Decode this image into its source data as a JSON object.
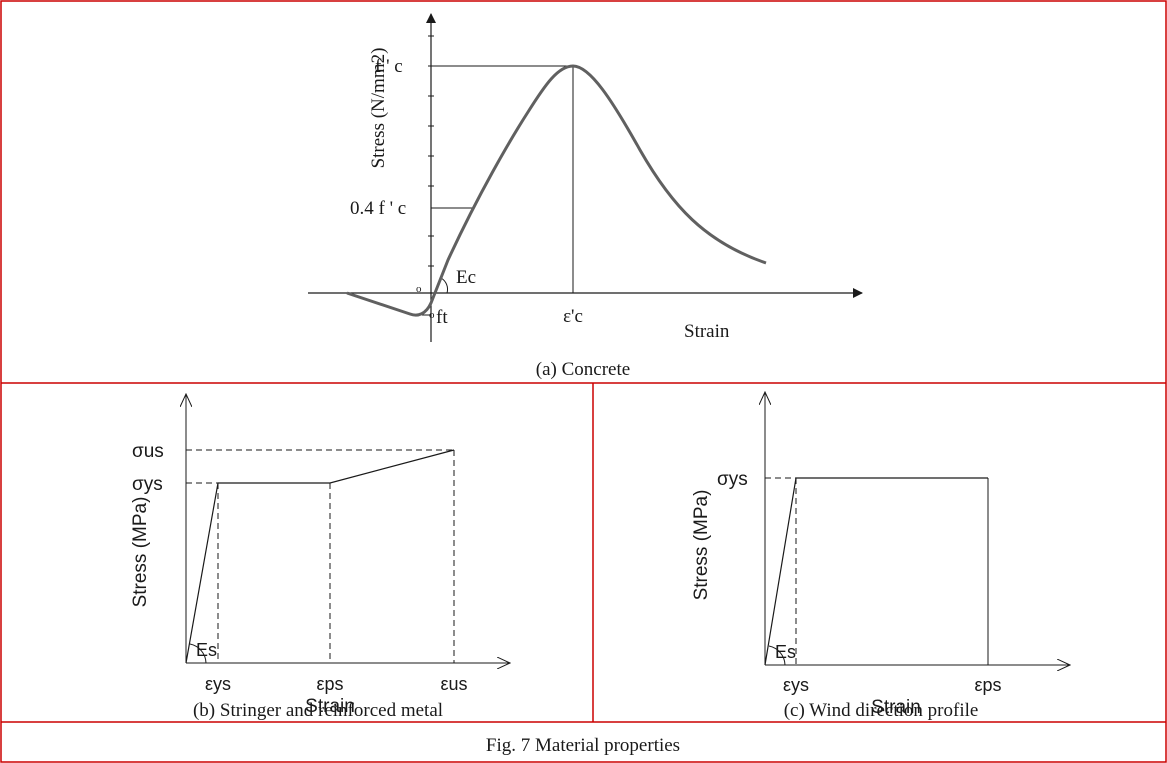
{
  "colors": {
    "border": "#cc0000",
    "curve": "#606060",
    "line": "#1a1a1a"
  },
  "panels": {
    "concrete": {
      "caption": "(a) Concrete",
      "ylabel": "Stress (N/mm2)",
      "xlabel": "Strain",
      "fc_label": "f ' c",
      "fc04_label": "0.4 f ' c",
      "ec_label": "Ec",
      "ft_label": "ft",
      "zero_label_left": "o",
      "zero_label_right": "o",
      "eps_c_label": "ε'c"
    },
    "stringer": {
      "caption": "(b) Stringer and reinforced metal",
      "ylabel": "Stress (MPa)",
      "xlabel": "Strain",
      "sigma_us": "σus",
      "sigma_ys": "σys",
      "es_label": "Es",
      "eps_ys": "εys",
      "eps_ps": "εps",
      "eps_us": "εus"
    },
    "wind": {
      "caption": "(c) Wind direction profile",
      "ylabel": "Stress (MPa)",
      "xlabel": "Strain",
      "sigma_ys": "σys",
      "es_label": "Es",
      "eps_ys": "εys",
      "eps_ps": "εps"
    }
  },
  "figure_caption": "Fig. 7 Material properties"
}
